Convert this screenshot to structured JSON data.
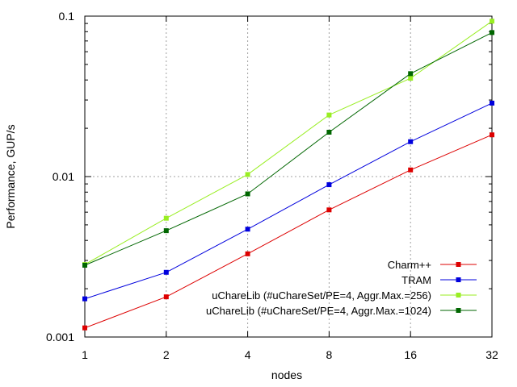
{
  "chart_data": {
    "type": "line",
    "xlabel": "nodes",
    "ylabel": "Performance, GUP/s",
    "x": [
      1,
      2,
      4,
      8,
      16,
      32
    ],
    "x_tick_labels": [
      "1",
      "2",
      "4",
      "8",
      "16",
      "32"
    ],
    "x_scale": "log2",
    "y_scale": "log10",
    "ylim": [
      0.001,
      0.1
    ],
    "y_tick_values": [
      0.001,
      0.01,
      0.1
    ],
    "y_tick_labels": [
      "0.001",
      "0.01",
      "0.1"
    ],
    "grid": true,
    "legend_position": "bottom-right",
    "series": [
      {
        "name": "Charm++",
        "color": "#dd0000",
        "values": [
          0.00114,
          0.00178,
          0.0033,
          0.0062,
          0.011,
          0.0182
        ]
      },
      {
        "name": "TRAM",
        "color": "#0000dd",
        "values": [
          0.00173,
          0.00253,
          0.0047,
          0.0089,
          0.0165,
          0.0287
        ]
      },
      {
        "name": "uChareLib (#uChareSet/PE=4, Aggr.Max.=256)",
        "color": "#99ee22",
        "values": [
          0.00283,
          0.0055,
          0.0103,
          0.0242,
          0.041,
          0.093
        ]
      },
      {
        "name": "uChareLib (#uChareSet/PE=4, Aggr.Max.=1024)",
        "color": "#006600",
        "values": [
          0.0028,
          0.0046,
          0.0078,
          0.0189,
          0.0438,
          0.079
        ]
      }
    ]
  }
}
